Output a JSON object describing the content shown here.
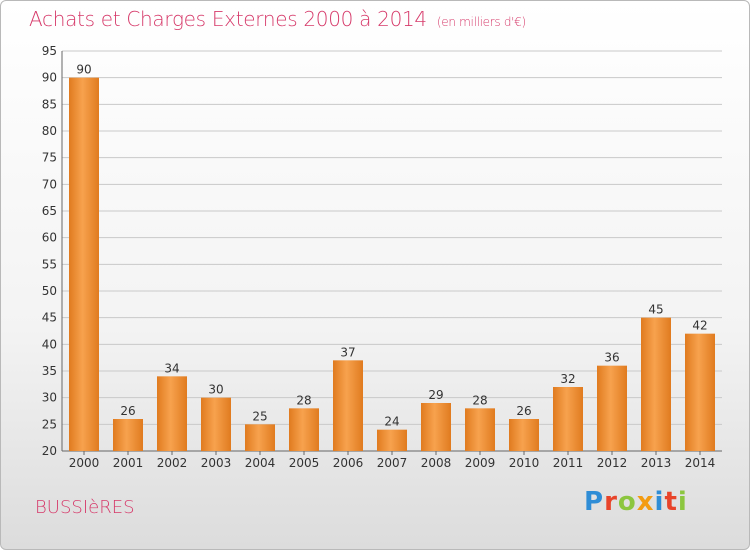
{
  "header": {
    "title": "Achats et Charges Externes 2000 à 2014",
    "unit": "(en milliers d'€)"
  },
  "footer": {
    "commune": "BUSSIèRES",
    "logo_text": "Proxiti"
  },
  "colors": {
    "title": "#d63a6a",
    "bar_light": "#f7a24e",
    "bar_dark": "#e07b1f",
    "grid": "#c9c9c9",
    "logo_letters": [
      "#2f8dd6",
      "#e8442a",
      "#8cc63f",
      "#f39c12",
      "#2f8dd6",
      "#e8442a",
      "#8cc63f"
    ]
  },
  "chart_data": {
    "type": "bar",
    "title": "Achats et Charges Externes 2000 à 2014",
    "subtitle": "(en milliers d'€)",
    "categories": [
      "2000",
      "2001",
      "2002",
      "2003",
      "2004",
      "2005",
      "2006",
      "2007",
      "2008",
      "2009",
      "2010",
      "2011",
      "2012",
      "2013",
      "2014"
    ],
    "values": [
      90,
      26,
      34,
      30,
      25,
      28,
      37,
      24,
      29,
      28,
      26,
      32,
      36,
      45,
      42
    ],
    "ylim": [
      20,
      95
    ],
    "yticks": [
      20,
      25,
      30,
      35,
      40,
      45,
      50,
      55,
      60,
      65,
      70,
      75,
      80,
      85,
      90,
      95
    ],
    "grid": true,
    "xlabel": "",
    "ylabel": ""
  }
}
